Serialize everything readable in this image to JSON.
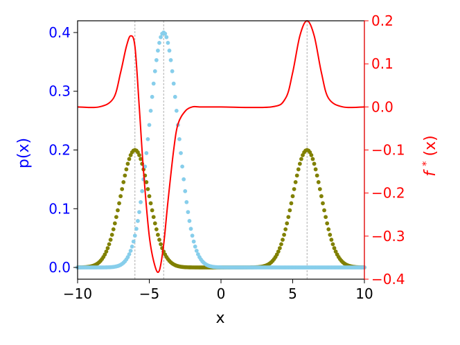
{
  "chart_data": {
    "type": "scatter",
    "title": "",
    "xlabel": "x",
    "ylabel_left": "p(x)",
    "ylabel_right_base": "f",
    "ylabel_right_sup": "*",
    "ylabel_right_tail": "(x)",
    "xlim": [
      -10,
      10
    ],
    "ylim_left": [
      -0.02,
      0.42
    ],
    "ylim_right": [
      -0.4,
      0.2
    ],
    "grid": false,
    "legend": "none",
    "x_ticks": [
      -10,
      -5,
      0,
      5,
      10
    ],
    "x_tick_labels": [
      "−10",
      "−5",
      "0",
      "5",
      "10"
    ],
    "y_left_ticks": [
      0.0,
      0.1,
      0.2,
      0.3,
      0.4
    ],
    "y_left_tick_labels": [
      "0.0",
      "0.1",
      "0.2",
      "0.3",
      "0.4"
    ],
    "y_right_ticks": [
      -0.4,
      -0.3,
      -0.2,
      -0.1,
      0.0,
      0.1,
      0.2
    ],
    "y_right_tick_labels": [
      "−0.4",
      "−0.3",
      "−0.2",
      "−0.1",
      "0.0",
      "0.1",
      "0.2"
    ],
    "vlines": [
      -6,
      -4,
      6
    ],
    "x_grid": {
      "start": -10,
      "stop": 10,
      "count": 201
    },
    "series": [
      {
        "kind": "scatter",
        "axis": "left",
        "color": "#808000",
        "components": [
          {
            "mean": -6,
            "std": 1,
            "peak": 0.2
          },
          {
            "mean": 6,
            "std": 1,
            "peak": 0.2
          }
        ]
      },
      {
        "kind": "scatter",
        "axis": "left",
        "color": "#87ceeb",
        "components": [
          {
            "mean": -4,
            "std": 1,
            "peak": 0.4
          }
        ]
      },
      {
        "kind": "line",
        "axis": "right",
        "color": "#ff0000",
        "knots_x": [
          -10,
          -8.5,
          -7.5,
          -7,
          -6.6,
          -6.3,
          -6.0,
          -5.7,
          -5.4,
          -5.0,
          -4.6,
          -4.3,
          -4.0,
          -3.7,
          -3.3,
          -3.0,
          -2.5,
          -2.0,
          -1.5,
          -1.0,
          0,
          3.5,
          4.5,
          5.0,
          5.5,
          6.0,
          6.5,
          7.0,
          7.5,
          8.5,
          10
        ],
        "knots_y": [
          0.0,
          0.0,
          0.02,
          0.08,
          0.14,
          0.165,
          0.14,
          0.0,
          -0.15,
          -0.3,
          -0.37,
          -0.38,
          -0.32,
          -0.22,
          -0.1,
          -0.04,
          -0.01,
          0.0,
          0.0,
          0.0,
          0.0,
          0.0,
          0.02,
          0.08,
          0.165,
          0.2,
          0.165,
          0.08,
          0.02,
          0.0,
          0.0
        ]
      }
    ]
  }
}
